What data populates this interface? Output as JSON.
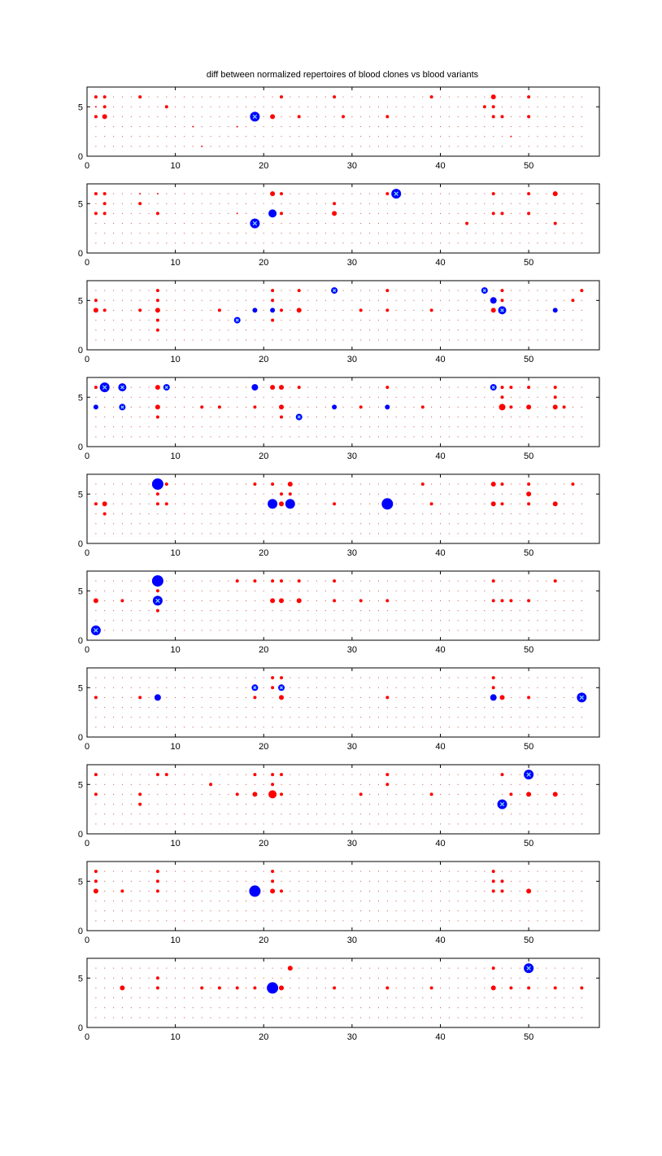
{
  "chart_data": {
    "type": "scatter",
    "title": "diff between normalized repertoires of blood clones vs blood variants",
    "xlim": [
      0,
      58
    ],
    "ylim": [
      0,
      7
    ],
    "xticks": [
      0,
      10,
      20,
      30,
      40,
      50
    ],
    "yticks": [
      0,
      5
    ],
    "grid_columns": 56,
    "grid_rows": 6,
    "background_color": "#cc0000",
    "positive_color": "#ff0000",
    "negative_color": "#0000ff",
    "marker_note": "x marks",
    "panels": [
      {
        "red": [
          [
            1,
            6,
            2
          ],
          [
            2,
            6,
            2
          ],
          [
            6,
            6,
            2
          ],
          [
            22,
            6,
            2
          ],
          [
            28,
            6,
            2
          ],
          [
            39,
            6,
            2
          ],
          [
            46,
            6,
            3
          ],
          [
            50,
            6,
            2
          ],
          [
            1,
            5,
            1
          ],
          [
            2,
            5,
            2
          ],
          [
            9,
            5,
            2
          ],
          [
            45,
            5,
            2
          ],
          [
            46,
            5,
            2
          ],
          [
            1,
            4,
            2
          ],
          [
            2,
            4,
            3
          ],
          [
            21,
            4,
            3
          ],
          [
            24,
            4,
            2
          ],
          [
            29,
            4,
            2
          ],
          [
            34,
            4,
            2
          ],
          [
            46,
            4,
            2
          ],
          [
            47,
            4,
            2
          ],
          [
            50,
            4,
            2
          ],
          [
            17,
            3,
            1
          ],
          [
            12,
            3,
            1
          ],
          [
            48,
            2,
            1
          ],
          [
            13,
            1,
            1
          ]
        ],
        "blue": [
          [
            19,
            4,
            6,
            "x"
          ]
        ]
      },
      {
        "red": [
          [
            1,
            6,
            2
          ],
          [
            2,
            6,
            2
          ],
          [
            6,
            6,
            1
          ],
          [
            8,
            6,
            1
          ],
          [
            21,
            6,
            3
          ],
          [
            22,
            6,
            2
          ],
          [
            34,
            6,
            2
          ],
          [
            46,
            6,
            2
          ],
          [
            50,
            6,
            2
          ],
          [
            53,
            6,
            3
          ],
          [
            2,
            5,
            2
          ],
          [
            6,
            5,
            2
          ],
          [
            28,
            5,
            2
          ],
          [
            1,
            4,
            2
          ],
          [
            2,
            4,
            2
          ],
          [
            8,
            4,
            2
          ],
          [
            17,
            4,
            1
          ],
          [
            22,
            4,
            2
          ],
          [
            28,
            4,
            3
          ],
          [
            46,
            4,
            2
          ],
          [
            47,
            4,
            2
          ],
          [
            50,
            4,
            2
          ],
          [
            43,
            3,
            2
          ],
          [
            53,
            3,
            2
          ]
        ],
        "blue": [
          [
            35,
            6,
            6,
            "x"
          ],
          [
            21,
            4,
            5,
            ""
          ],
          [
            19,
            3,
            6,
            "x"
          ]
        ]
      },
      {
        "red": [
          [
            8,
            6,
            2
          ],
          [
            21,
            6,
            2
          ],
          [
            24,
            6,
            2
          ],
          [
            34,
            6,
            2
          ],
          [
            47,
            6,
            2
          ],
          [
            56,
            6,
            2
          ],
          [
            1,
            5,
            2
          ],
          [
            8,
            5,
            2
          ],
          [
            21,
            5,
            2
          ],
          [
            47,
            5,
            2
          ],
          [
            55,
            5,
            2
          ],
          [
            1,
            4,
            3
          ],
          [
            2,
            4,
            2
          ],
          [
            6,
            4,
            2
          ],
          [
            8,
            4,
            3
          ],
          [
            15,
            4,
            2
          ],
          [
            22,
            4,
            2
          ],
          [
            24,
            4,
            3
          ],
          [
            31,
            4,
            2
          ],
          [
            34,
            4,
            2
          ],
          [
            39,
            4,
            2
          ],
          [
            46,
            4,
            3
          ],
          [
            8,
            3,
            2
          ],
          [
            21,
            3,
            2
          ],
          [
            8,
            2,
            2
          ]
        ],
        "blue": [
          [
            28,
            6,
            4,
            "x"
          ],
          [
            45,
            6,
            4,
            "x"
          ],
          [
            46,
            5,
            4,
            ""
          ],
          [
            19,
            4,
            3,
            ""
          ],
          [
            21,
            4,
            3,
            ""
          ],
          [
            47,
            4,
            5,
            "x"
          ],
          [
            53,
            4,
            3,
            ""
          ],
          [
            17,
            3,
            4,
            "x"
          ]
        ]
      },
      {
        "red": [
          [
            1,
            6,
            2
          ],
          [
            8,
            6,
            3
          ],
          [
            21,
            6,
            3
          ],
          [
            22,
            6,
            3
          ],
          [
            24,
            6,
            2
          ],
          [
            34,
            6,
            2
          ],
          [
            47,
            6,
            2
          ],
          [
            48,
            6,
            2
          ],
          [
            50,
            6,
            2
          ],
          [
            53,
            6,
            2
          ],
          [
            47,
            5,
            2
          ],
          [
            53,
            5,
            2
          ],
          [
            8,
            4,
            3
          ],
          [
            13,
            4,
            2
          ],
          [
            15,
            4,
            2
          ],
          [
            19,
            4,
            2
          ],
          [
            22,
            4,
            3
          ],
          [
            31,
            4,
            2
          ],
          [
            38,
            4,
            2
          ],
          [
            47,
            4,
            4
          ],
          [
            48,
            4,
            2
          ],
          [
            50,
            4,
            3
          ],
          [
            53,
            4,
            3
          ],
          [
            54,
            4,
            2
          ],
          [
            8,
            3,
            2
          ],
          [
            22,
            3,
            2
          ]
        ],
        "blue": [
          [
            2,
            6,
            6,
            "x"
          ],
          [
            4,
            6,
            5,
            "x"
          ],
          [
            9,
            6,
            4,
            "x"
          ],
          [
            19,
            6,
            4,
            ""
          ],
          [
            46,
            6,
            4,
            "x"
          ],
          [
            1,
            4,
            3,
            ""
          ],
          [
            4,
            4,
            4,
            "x"
          ],
          [
            28,
            4,
            3,
            ""
          ],
          [
            34,
            4,
            3,
            ""
          ],
          [
            24,
            3,
            4,
            "x"
          ]
        ]
      },
      {
        "red": [
          [
            9,
            6,
            2
          ],
          [
            19,
            6,
            2
          ],
          [
            21,
            6,
            2
          ],
          [
            23,
            6,
            3
          ],
          [
            38,
            6,
            2
          ],
          [
            46,
            6,
            3
          ],
          [
            47,
            6,
            2
          ],
          [
            50,
            6,
            2
          ],
          [
            55,
            6,
            2
          ],
          [
            8,
            5,
            2
          ],
          [
            22,
            5,
            2
          ],
          [
            23,
            5,
            2
          ],
          [
            50,
            5,
            3
          ],
          [
            1,
            4,
            2
          ],
          [
            2,
            4,
            3
          ],
          [
            8,
            4,
            2
          ],
          [
            9,
            4,
            2
          ],
          [
            22,
            4,
            3
          ],
          [
            28,
            4,
            2
          ],
          [
            39,
            4,
            2
          ],
          [
            46,
            4,
            3
          ],
          [
            47,
            4,
            2
          ],
          [
            50,
            4,
            2
          ],
          [
            53,
            4,
            3
          ],
          [
            2,
            3,
            2
          ]
        ],
        "blue": [
          [
            8,
            6,
            7,
            ""
          ],
          [
            21,
            4,
            6,
            ""
          ],
          [
            23,
            4,
            6,
            ""
          ],
          [
            34,
            4,
            7,
            ""
          ]
        ]
      },
      {
        "red": [
          [
            17,
            6,
            2
          ],
          [
            19,
            6,
            2
          ],
          [
            21,
            6,
            2
          ],
          [
            22,
            6,
            2
          ],
          [
            24,
            6,
            2
          ],
          [
            28,
            6,
            2
          ],
          [
            46,
            6,
            2
          ],
          [
            53,
            6,
            2
          ],
          [
            8,
            5,
            2
          ],
          [
            1,
            4,
            3
          ],
          [
            4,
            4,
            2
          ],
          [
            21,
            4,
            3
          ],
          [
            22,
            4,
            3
          ],
          [
            24,
            4,
            3
          ],
          [
            28,
            4,
            2
          ],
          [
            31,
            4,
            2
          ],
          [
            34,
            4,
            2
          ],
          [
            46,
            4,
            2
          ],
          [
            47,
            4,
            2
          ],
          [
            48,
            4,
            2
          ],
          [
            50,
            4,
            2
          ],
          [
            8,
            3,
            2
          ]
        ],
        "blue": [
          [
            8,
            6,
            7,
            ""
          ],
          [
            8,
            4,
            6,
            "x"
          ],
          [
            1,
            1,
            6,
            "x"
          ]
        ]
      },
      {
        "red": [
          [
            21,
            6,
            2
          ],
          [
            22,
            6,
            2
          ],
          [
            46,
            6,
            2
          ],
          [
            21,
            5,
            2
          ],
          [
            46,
            5,
            2
          ],
          [
            1,
            4,
            2
          ],
          [
            6,
            4,
            2
          ],
          [
            19,
            4,
            2
          ],
          [
            22,
            4,
            3
          ],
          [
            34,
            4,
            2
          ],
          [
            47,
            4,
            3
          ],
          [
            50,
            4,
            2
          ]
        ],
        "blue": [
          [
            19,
            5,
            4,
            "x"
          ],
          [
            22,
            5,
            4,
            "x"
          ],
          [
            8,
            4,
            4,
            ""
          ],
          [
            46,
            4,
            4,
            ""
          ],
          [
            56,
            4,
            6,
            "x"
          ]
        ]
      },
      {
        "red": [
          [
            1,
            6,
            2
          ],
          [
            8,
            6,
            2
          ],
          [
            9,
            6,
            2
          ],
          [
            19,
            6,
            2
          ],
          [
            21,
            6,
            2
          ],
          [
            22,
            6,
            2
          ],
          [
            34,
            6,
            2
          ],
          [
            47,
            6,
            2
          ],
          [
            14,
            5,
            2
          ],
          [
            21,
            5,
            2
          ],
          [
            34,
            5,
            2
          ],
          [
            1,
            4,
            2
          ],
          [
            6,
            4,
            2
          ],
          [
            17,
            4,
            2
          ],
          [
            19,
            4,
            3
          ],
          [
            21,
            4,
            5
          ],
          [
            22,
            4,
            2
          ],
          [
            31,
            4,
            2
          ],
          [
            39,
            4,
            2
          ],
          [
            48,
            4,
            2
          ],
          [
            50,
            4,
            3
          ],
          [
            53,
            4,
            3
          ],
          [
            6,
            3,
            2
          ]
        ],
        "blue": [
          [
            50,
            6,
            6,
            "x"
          ],
          [
            47,
            3,
            6,
            "x"
          ]
        ]
      },
      {
        "red": [
          [
            1,
            6,
            2
          ],
          [
            8,
            6,
            2
          ],
          [
            21,
            6,
            2
          ],
          [
            46,
            6,
            2
          ],
          [
            1,
            5,
            2
          ],
          [
            8,
            5,
            2
          ],
          [
            21,
            5,
            2
          ],
          [
            46,
            5,
            2
          ],
          [
            47,
            5,
            2
          ],
          [
            1,
            4,
            3
          ],
          [
            4,
            4,
            2
          ],
          [
            8,
            4,
            2
          ],
          [
            21,
            4,
            3
          ],
          [
            22,
            4,
            2
          ],
          [
            46,
            4,
            2
          ],
          [
            47,
            4,
            2
          ],
          [
            50,
            4,
            3
          ]
        ],
        "blue": [
          [
            19,
            4,
            7,
            ""
          ]
        ]
      },
      {
        "red": [
          [
            23,
            6,
            3
          ],
          [
            46,
            6,
            2
          ],
          [
            8,
            5,
            2
          ],
          [
            4,
            4,
            3
          ],
          [
            8,
            4,
            2
          ],
          [
            13,
            4,
            2
          ],
          [
            15,
            4,
            2
          ],
          [
            17,
            4,
            2
          ],
          [
            19,
            4,
            2
          ],
          [
            22,
            4,
            3
          ],
          [
            28,
            4,
            2
          ],
          [
            34,
            4,
            2
          ],
          [
            39,
            4,
            2
          ],
          [
            46,
            4,
            3
          ],
          [
            48,
            4,
            2
          ],
          [
            50,
            4,
            2
          ],
          [
            53,
            4,
            2
          ],
          [
            56,
            4,
            2
          ]
        ],
        "blue": [
          [
            21,
            4,
            7,
            ""
          ],
          [
            50,
            6,
            6,
            "x"
          ]
        ]
      }
    ]
  }
}
